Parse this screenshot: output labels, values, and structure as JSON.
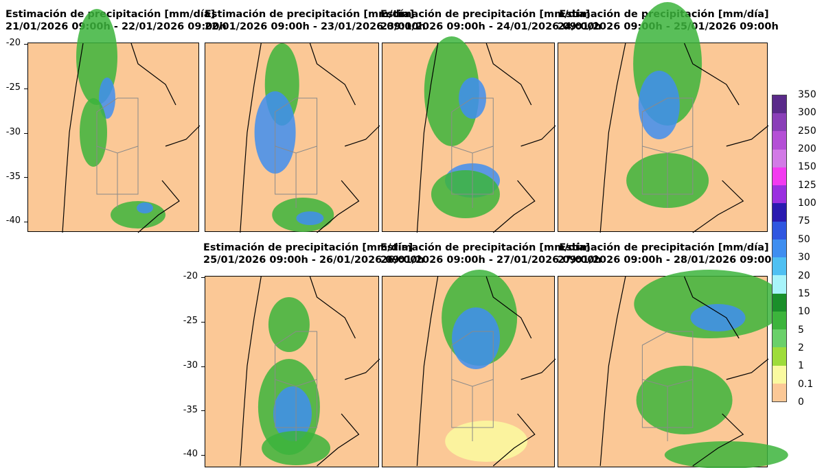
{
  "panels": [
    {
      "title_line1": "Estimación de precipitación [mm/día]",
      "title_line2": "21/01/2026 09:00h - 22/01/2026 09:00h"
    },
    {
      "title_line1": "Estimación de precipitación [mm/día]",
      "title_line2": "22/01/2026 09:00h - 23/01/2026 09:00h"
    },
    {
      "title_line1": "Estimación de precipitación [mm/día]",
      "title_line2": "23/01/2026 09:00h - 24/01/2026 09:00h"
    },
    {
      "title_line1": "Estimación de precipitación [mm/día]",
      "title_line2": "24/01/2026 09:00h - 25/01/2026 09:00h"
    },
    {
      "title_line1": "Estimación de precipitación [mm/día]",
      "title_line2": "25/01/2026 09:00h - 26/01/2026 09:00h"
    },
    {
      "title_line1": "Estimación de precipitación [mm/día]",
      "title_line2": "26/01/2026 09:00h - 27/01/2026 09:00h"
    },
    {
      "title_line1": "Estimación de precipitación [mm/día]",
      "title_line2": "27/01/2026 09:00h - 28/01/2026 09:00h"
    }
  ],
  "latitude_ticks": [
    "-20",
    "-25",
    "-30",
    "-35",
    "-40"
  ],
  "colorbar": {
    "labels": [
      "350",
      "300",
      "250",
      "200",
      "150",
      "125",
      "100",
      "75",
      "50",
      "30",
      "20",
      "15",
      "10",
      "5",
      "2",
      "1",
      "0.1",
      "0"
    ],
    "colors": [
      "#5a2a8a",
      "#8a3fb8",
      "#b44fd6",
      "#d27ae6",
      "#f23af0",
      "#9a2fe0",
      "#2a1ab0",
      "#2f56e0",
      "#3f8ef0",
      "#4fc0f2",
      "#a8f4fa",
      "#1a8f2a",
      "#3cb43c",
      "#6ad06a",
      "#9edc3a",
      "#fafaa0",
      "#fbc896"
    ]
  },
  "colors": {
    "background": "#fbc896",
    "precip_green": "#3cb43c",
    "precip_blue": "#3f8ef0",
    "coast": "#000000",
    "provinces": "#8a8a8a"
  }
}
